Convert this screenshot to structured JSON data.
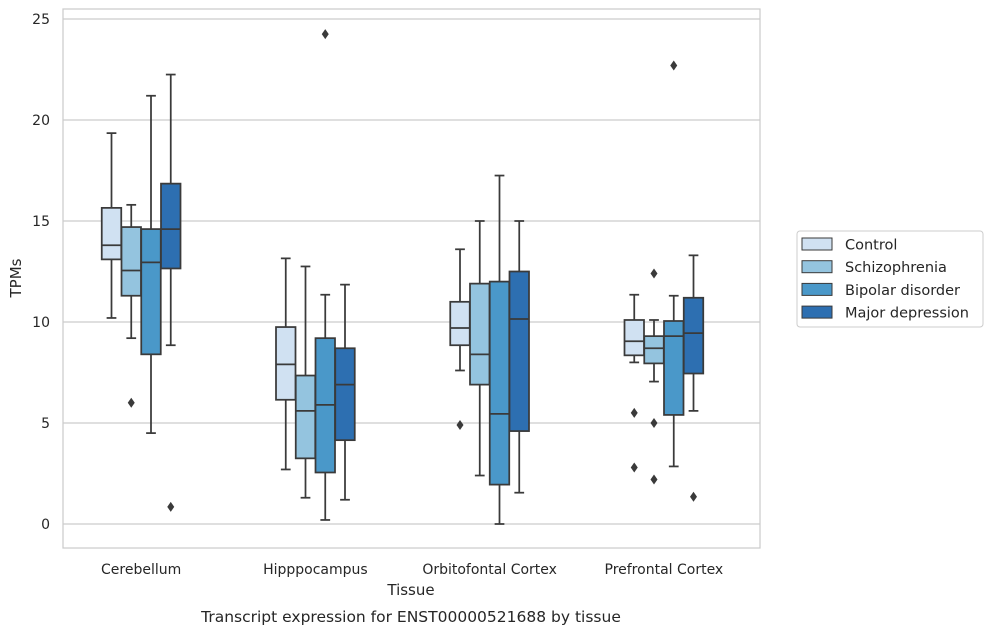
{
  "chart_data": {
    "type": "box",
    "title": "",
    "caption": "Transcript expression for ENST00000521688 by tissue",
    "xlabel": "Tissue",
    "ylabel": "TPMs",
    "ylim": [
      -1.2,
      25.5
    ],
    "yticks": [
      0,
      5,
      10,
      15,
      20,
      25
    ],
    "grid": "horizontal",
    "legend_position": "right",
    "categories": [
      "Cerebellum",
      "Hipppocampus",
      "Orbitofontal Cortex",
      "Prefrontal Cortex"
    ],
    "series": [
      {
        "name": "Control",
        "color": "#d0e1f2",
        "boxes": [
          {
            "whisker_low": 10.2,
            "q1": 13.1,
            "median": 13.8,
            "q3": 15.65,
            "whisker_high": 19.35,
            "outliers": []
          },
          {
            "whisker_low": 2.7,
            "q1": 6.15,
            "median": 7.9,
            "q3": 9.75,
            "whisker_high": 13.15,
            "outliers": []
          },
          {
            "whisker_low": 7.6,
            "q1": 8.85,
            "median": 9.7,
            "q3": 11.0,
            "whisker_high": 13.6,
            "outliers": [
              4.9
            ]
          },
          {
            "whisker_low": 8.0,
            "q1": 8.35,
            "median": 9.05,
            "q3": 10.1,
            "whisker_high": 11.35,
            "outliers": [
              5.5,
              2.8
            ]
          }
        ]
      },
      {
        "name": "Schizophrenia",
        "color": "#94c4df",
        "boxes": [
          {
            "whisker_low": 9.2,
            "q1": 11.3,
            "median": 12.55,
            "q3": 14.7,
            "whisker_high": 15.8,
            "outliers": [
              6.0
            ]
          },
          {
            "whisker_low": 1.3,
            "q1": 3.25,
            "median": 5.6,
            "q3": 7.35,
            "whisker_high": 12.75,
            "outliers": []
          },
          {
            "whisker_low": 2.4,
            "q1": 6.9,
            "median": 8.4,
            "q3": 11.9,
            "whisker_high": 15.0,
            "outliers": []
          },
          {
            "whisker_low": 7.05,
            "q1": 7.95,
            "median": 8.7,
            "q3": 9.3,
            "whisker_high": 10.1,
            "outliers": [
              12.4,
              5.0,
              2.2
            ]
          }
        ]
      },
      {
        "name": "Bipolar disorder",
        "color": "#4a98c9",
        "boxes": [
          {
            "whisker_low": 4.5,
            "q1": 8.4,
            "median": 12.95,
            "q3": 14.6,
            "whisker_high": 21.2,
            "outliers": []
          },
          {
            "whisker_low": 0.2,
            "q1": 2.55,
            "median": 5.9,
            "q3": 9.2,
            "whisker_high": 11.35,
            "outliers": [
              24.25
            ]
          },
          {
            "whisker_low": 0.0,
            "q1": 1.95,
            "median": 5.45,
            "q3": 12.0,
            "whisker_high": 17.25,
            "outliers": []
          },
          {
            "whisker_low": 2.85,
            "q1": 5.4,
            "median": 9.3,
            "q3": 10.05,
            "whisker_high": 11.3,
            "outliers": [
              22.7
            ]
          }
        ]
      },
      {
        "name": "Major depression",
        "color": "#2d6fb1",
        "boxes": [
          {
            "whisker_low": 8.85,
            "q1": 12.65,
            "median": 14.6,
            "q3": 16.85,
            "whisker_high": 22.25,
            "outliers": [
              0.85
            ]
          },
          {
            "whisker_low": 1.2,
            "q1": 4.15,
            "median": 6.9,
            "q3": 8.7,
            "whisker_high": 11.85,
            "outliers": []
          },
          {
            "whisker_low": 1.55,
            "q1": 4.6,
            "median": 10.15,
            "q3": 12.5,
            "whisker_high": 15.0,
            "outliers": []
          },
          {
            "whisker_low": 5.6,
            "q1": 7.45,
            "median": 9.45,
            "q3": 11.2,
            "whisker_high": 13.3,
            "outliers": [
              1.35
            ]
          }
        ]
      }
    ]
  }
}
